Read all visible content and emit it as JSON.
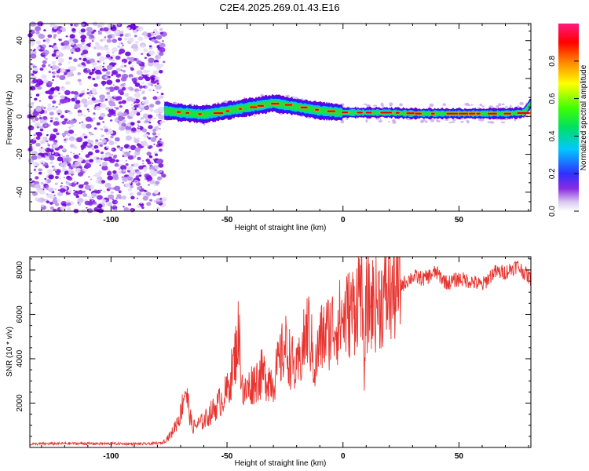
{
  "title": "C2E4.2025.269.01.43.E16",
  "colors": {
    "snr_line": "#e8332e",
    "spectrogram_noise": "#8a2be2",
    "axis": "#000000"
  },
  "chart_data": [
    {
      "type": "heatmap",
      "xlabel": "Height of straight line (km)",
      "ylabel": "Frequency (Hz)",
      "xlim": [
        -135,
        81
      ],
      "ylim": [
        -50,
        49
      ],
      "x_ticks": [
        -100,
        -50,
        0,
        50
      ],
      "x_tick_labels": [
        "-100",
        "-50",
        "0",
        "50"
      ],
      "y_ticks": [
        -40,
        -20,
        0,
        20,
        40
      ],
      "y_tick_labels": [
        "-40",
        "-20",
        "0",
        "20",
        "40"
      ],
      "noise_region_x": [
        -135,
        -77
      ],
      "ridge_frequency": {
        "x": [
          -77,
          -70,
          -60,
          -50,
          -40,
          -30,
          -20,
          -10,
          0,
          10,
          20,
          30,
          40,
          50,
          60,
          70,
          78,
          81
        ],
        "y": [
          3,
          2,
          1,
          3,
          5,
          7,
          5,
          3,
          2,
          2,
          2,
          1.5,
          1.5,
          1.5,
          1.5,
          1.5,
          2,
          7
        ]
      },
      "colorbar": {
        "label": "Normalized spectral amplitude",
        "range": [
          0,
          1
        ],
        "ticks": [
          0.0,
          0.2,
          0.4,
          0.6,
          0.8
        ],
        "tick_labels": [
          "0.0",
          "0.2",
          "0.4",
          "0.6",
          "0.8"
        ]
      }
    },
    {
      "type": "line",
      "xlabel": "Height of straight line (km)",
      "ylabel": "SNR (10 * v/v)",
      "xlim": [
        -135,
        81
      ],
      "ylim": [
        0,
        8600
      ],
      "x_ticks": [
        -100,
        -50,
        0,
        50
      ],
      "x_tick_labels": [
        "-100",
        "-50",
        "0",
        "50"
      ],
      "y_ticks": [
        2000,
        4000,
        6000,
        8000
      ],
      "y_tick_labels": [
        "2000",
        "4000",
        "6000",
        "8000"
      ],
      "series": [
        {
          "x": [
            -135,
            -120,
            -100,
            -85,
            -78,
            -74,
            -70,
            -68,
            -65,
            -60,
            -55,
            -50,
            -47,
            -45,
            -43,
            -40,
            -35,
            -30,
            -25,
            -20,
            -17,
            -15,
            -12,
            -10,
            -5,
            0,
            5,
            8,
            9,
            10,
            15,
            20,
            25,
            30,
            35,
            40,
            45,
            50,
            55,
            60,
            65,
            70,
            75,
            81
          ],
          "y": [
            150,
            180,
            170,
            160,
            200,
            600,
            1500,
            2700,
            900,
            1200,
            1800,
            2500,
            3800,
            5200,
            2300,
            2800,
            3300,
            3000,
            4600,
            3300,
            4600,
            5500,
            3500,
            4800,
            5400,
            5800,
            6300,
            7600,
            3200,
            6400,
            6600,
            6900,
            7300,
            7700,
            7600,
            7900,
            7400,
            7600,
            7500,
            7300,
            7900,
            7900,
            8200,
            7600
          ]
        }
      ]
    }
  ]
}
